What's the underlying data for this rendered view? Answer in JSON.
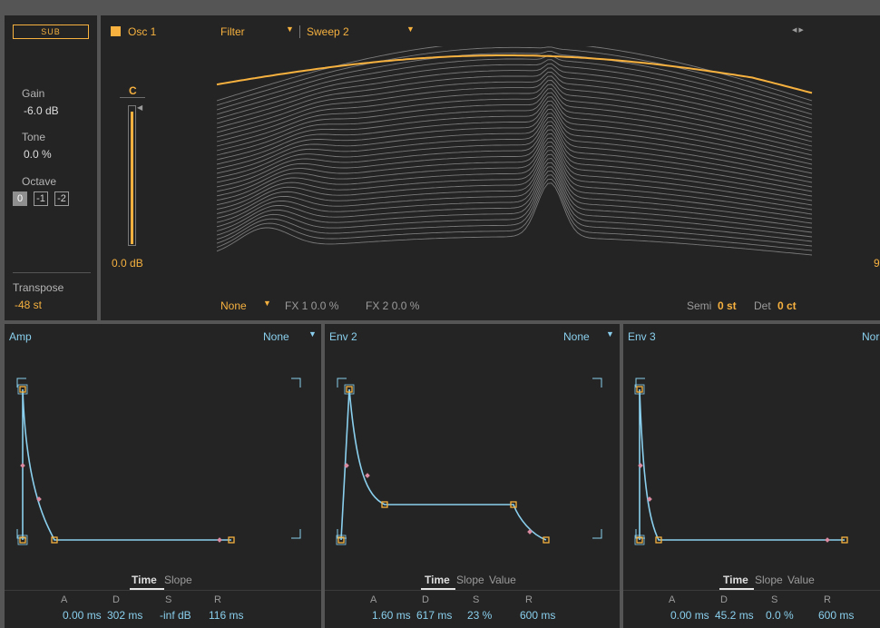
{
  "sub": {
    "badge": "SUB",
    "gain_label": "Gain",
    "gain_value": "-6.0 dB",
    "tone_label": "Tone",
    "tone_value": "0.0 %",
    "octave_label": "Octave",
    "octave_options": [
      "0",
      "-1",
      "-2"
    ],
    "octave_selected": "0",
    "transpose_label": "Transpose",
    "transpose_value": "-48 st"
  },
  "osc": {
    "name": "Osc 1",
    "filter_label": "Filter",
    "wavetable_label": "Sweep 2",
    "level_note": "C",
    "level_value": "0.0 dB",
    "level_fraction": 0.97,
    "fx_mode": "None",
    "fx1_label": "FX 1",
    "fx1_value": "0.0 %",
    "fx2_label": "FX 2",
    "fx2_value": "0.0 %",
    "semi_label": "Semi",
    "semi_value": "0 st",
    "det_label": "Det",
    "det_value": "0 ct",
    "right_edge_text": "9",
    "nav_icon": "arrow-left-right-icon"
  },
  "envelopes": [
    {
      "title": "Amp",
      "mode": "None",
      "tabs": [
        "Time",
        "Slope"
      ],
      "active_tab": "Time",
      "params": [
        {
          "label": "A",
          "value": "0.00 ms"
        },
        {
          "label": "D",
          "value": "302 ms"
        },
        {
          "label": "S",
          "value": "-inf dB"
        },
        {
          "label": "R",
          "value": "116 ms"
        }
      ]
    },
    {
      "title": "Env 2",
      "mode": "None",
      "tabs": [
        "Time",
        "Slope",
        "Value"
      ],
      "active_tab": "Time",
      "params": [
        {
          "label": "A",
          "value": "1.60 ms"
        },
        {
          "label": "D",
          "value": "617 ms"
        },
        {
          "label": "S",
          "value": "23 %"
        },
        {
          "label": "R",
          "value": "600 ms"
        }
      ]
    },
    {
      "title": "Env 3",
      "mode": "Nor",
      "tabs": [
        "Time",
        "Slope",
        "Value"
      ],
      "active_tab": "Time",
      "params": [
        {
          "label": "A",
          "value": "0.00 ms"
        },
        {
          "label": "D",
          "value": "45.2 ms"
        },
        {
          "label": "S",
          "value": "0.0 %"
        },
        {
          "label": "R",
          "value": "600 ms"
        }
      ]
    }
  ],
  "colors": {
    "accent": "#f6b13f",
    "envelope": "#8ad0ee",
    "background": "#242424",
    "waveform": "#7a7a7a"
  }
}
